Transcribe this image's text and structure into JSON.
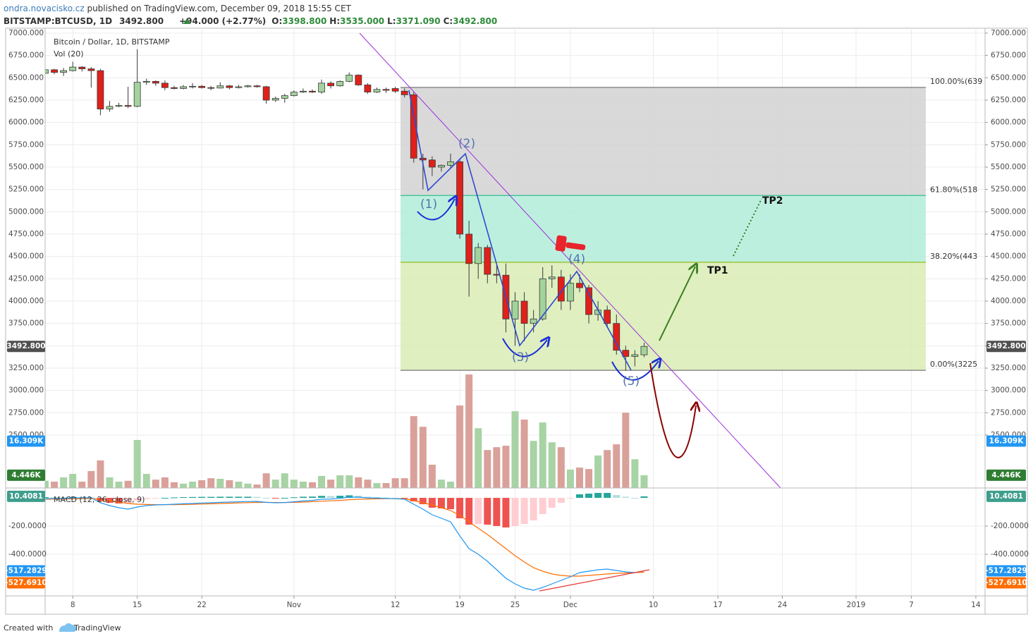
{
  "header": {
    "author": "ondra.novacisko.cz",
    "published": "published on TradingView.com, December 09, 2018 15:55 CET",
    "symbol": "BITSTAMP:BTCUSD, 1D",
    "price": "3492.800",
    "change": "+94.000 (+2.77%)",
    "ohlc": [
      {
        "key": "O:",
        "value": "3398.800"
      },
      {
        "key": "H:",
        "value": "3535.000"
      },
      {
        "key": "L:",
        "value": "3371.090"
      },
      {
        "key": "C:",
        "value": "3492.800"
      }
    ]
  },
  "chart_data": {
    "type": "candlestick",
    "title": "Bitcoin / Dollar, 1D, BITSTAMP",
    "x": [
      "2018-10-05",
      "2018-10-06",
      "2018-10-07",
      "2018-10-08",
      "2018-10-09",
      "2018-10-10",
      "2018-10-11",
      "2018-10-12",
      "2018-10-13",
      "2018-10-14",
      "2018-10-15",
      "2018-10-16",
      "2018-10-17",
      "2018-10-18",
      "2018-10-19",
      "2018-10-20",
      "2018-10-21",
      "2018-10-22",
      "2018-10-23",
      "2018-10-24",
      "2018-10-25",
      "2018-10-26",
      "2018-10-27",
      "2018-10-28",
      "2018-10-29",
      "2018-10-30",
      "2018-10-31",
      "2018-11-01",
      "2018-11-02",
      "2018-11-03",
      "2018-11-04",
      "2018-11-05",
      "2018-11-06",
      "2018-11-07",
      "2018-11-08",
      "2018-11-09",
      "2018-11-10",
      "2018-11-11",
      "2018-11-12",
      "2018-11-13",
      "2018-11-14",
      "2018-11-15",
      "2018-11-16",
      "2018-11-17",
      "2018-11-18",
      "2018-11-19",
      "2018-11-20",
      "2018-11-21",
      "2018-11-22",
      "2018-11-23",
      "2018-11-24",
      "2018-11-25",
      "2018-11-26",
      "2018-11-27",
      "2018-11-28",
      "2018-11-29",
      "2018-11-30",
      "2018-12-01",
      "2018-12-02",
      "2018-12-03",
      "2018-12-04",
      "2018-12-05",
      "2018-12-06",
      "2018-12-07",
      "2018-12-08",
      "2018-12-09"
    ],
    "open": [
      6550,
      6590,
      6560,
      6580,
      6620,
      6600,
      6580,
      6150,
      6180,
      6190,
      6180,
      6450,
      6460,
      6440,
      6390,
      6380,
      6400,
      6405,
      6390,
      6385,
      6410,
      6390,
      6400,
      6410,
      6400,
      6250,
      6270,
      6300,
      6340,
      6350,
      6340,
      6440,
      6410,
      6460,
      6530,
      6420,
      6340,
      6370,
      6380,
      6350,
      6310,
      5600,
      5580,
      5500,
      5520,
      5560,
      4750,
      4420,
      4600,
      4300,
      4290,
      3800,
      4000,
      3750,
      3800,
      4250,
      4270,
      4000,
      4200,
      4150,
      3850,
      3900,
      3750,
      3450,
      3380,
      3398.8
    ],
    "high": [
      6620,
      6600,
      6610,
      6680,
      6630,
      6620,
      6600,
      6240,
      6220,
      6400,
      6820,
      6490,
      6470,
      6470,
      6410,
      6420,
      6440,
      6420,
      6410,
      6450,
      6420,
      6420,
      6420,
      6420,
      6410,
      6290,
      6320,
      6360,
      6380,
      6370,
      6480,
      6460,
      6470,
      6560,
      6540,
      6440,
      6390,
      6390,
      6400,
      6380,
      6340,
      5650,
      5620,
      5530,
      5650,
      5600,
      4900,
      4650,
      4630,
      4400,
      4420,
      4100,
      4100,
      3900,
      4380,
      4400,
      4350,
      4300,
      4300,
      4180,
      4000,
      3950,
      3850,
      3500,
      3450,
      3535
    ],
    "low": [
      6530,
      6540,
      6520,
      6570,
      6570,
      6390,
      6080,
      6120,
      6170,
      6160,
      6170,
      6420,
      6410,
      6360,
      6370,
      6370,
      6380,
      6380,
      6360,
      6380,
      6370,
      6380,
      6390,
      6390,
      6210,
      6230,
      6220,
      6290,
      6330,
      6330,
      6320,
      6380,
      6400,
      6450,
      6410,
      6320,
      6330,
      6330,
      6330,
      6280,
      5550,
      5250,
      5400,
      5450,
      5490,
      4700,
      4050,
      4250,
      4200,
      4200,
      3650,
      3500,
      3550,
      3650,
      3780,
      4150,
      3900,
      3900,
      4100,
      3750,
      3780,
      3700,
      3400,
      3220,
      3270,
      3371.09
    ],
    "close": [
      6590,
      6560,
      6580,
      6620,
      6600,
      6580,
      6150,
      6180,
      6190,
      6180,
      6450,
      6460,
      6440,
      6390,
      6380,
      6400,
      6405,
      6390,
      6385,
      6410,
      6390,
      6400,
      6410,
      6400,
      6250,
      6270,
      6300,
      6340,
      6350,
      6340,
      6440,
      6410,
      6460,
      6530,
      6420,
      6340,
      6370,
      6360,
      6350,
      6310,
      5600,
      5580,
      5500,
      5520,
      5560,
      4750,
      4420,
      4600,
      4300,
      4290,
      3800,
      4000,
      3750,
      3800,
      4250,
      4270,
      4000,
      4200,
      4150,
      3850,
      3900,
      3750,
      3450,
      3380,
      3400,
      3492.8
    ],
    "up_color": "#a3d39c",
    "down_color": "#e0201a",
    "border_color": "#3a3a3a",
    "close_last_label": "3492.800",
    "last_color": "#4f4f4f",
    "xlim": [
      "2018-10-05",
      "2019-01-15"
    ],
    "xticks": [
      {
        "value": "2018-10-08",
        "label": "8"
      },
      {
        "value": "2018-10-15",
        "label": "15"
      },
      {
        "value": "2018-10-22",
        "label": "22"
      },
      {
        "value": "2018-11-01",
        "label": "Nov"
      },
      {
        "value": "2018-11-12",
        "label": "12"
      },
      {
        "value": "2018-11-19",
        "label": "19"
      },
      {
        "value": "2018-11-25",
        "label": "25"
      },
      {
        "value": "2018-12-01",
        "label": "Dec"
      },
      {
        "value": "2018-12-10",
        "label": "10"
      },
      {
        "value": "2018-12-17",
        "label": "17"
      },
      {
        "value": "2018-12-24",
        "label": "24"
      },
      {
        "value": "2019-01-01",
        "label": "2019"
      },
      {
        "value": "2019-01-07",
        "label": "7"
      },
      {
        "value": "2019-01-14",
        "label": "14"
      }
    ],
    "ylim": [
      1908,
      7055
    ],
    "yticks": [
      {
        "value": 2500,
        "label": "2500.000"
      },
      {
        "value": 2750,
        "label": "2750.000"
      },
      {
        "value": 3000,
        "label": "3000.000"
      },
      {
        "value": 3250,
        "label": "3250.000"
      },
      {
        "value": 3500,
        "label": "3500.000"
      },
      {
        "value": 3750,
        "label": "3750.000"
      },
      {
        "value": 4000,
        "label": "4000.000"
      },
      {
        "value": 4250,
        "label": "4250.000"
      },
      {
        "value": 4500,
        "label": "4500.000"
      },
      {
        "value": 4750,
        "label": "4750.000"
      },
      {
        "value": 5000,
        "label": "5000.000"
      },
      {
        "value": 5250,
        "label": "5250.000"
      },
      {
        "value": 5500,
        "label": "5500.000"
      },
      {
        "value": 5750,
        "label": "5750.000"
      },
      {
        "value": 6000,
        "label": "6000.000"
      },
      {
        "value": 6250,
        "label": "6250.000"
      },
      {
        "value": 6500,
        "label": "6500.000"
      },
      {
        "value": 6750,
        "label": "6750.000"
      },
      {
        "value": 7000,
        "label": "7000.000"
      }
    ],
    "grid": true,
    "fib": {
      "levels": [
        {
          "value": 6392,
          "label": "100.00%(639",
          "color": "#8c8c8c"
        },
        {
          "value": 5182,
          "label": "61.80%(518",
          "color": "#4cc39d"
        },
        {
          "value": 4435,
          "label": "38.20%(443",
          "color": "#9cc43c"
        },
        {
          "value": 3225,
          "label": "0.00%(3225",
          "color": "#8c8c8c"
        }
      ],
      "zone_colors": [
        "#d2d2d2",
        "#b2ecd9",
        "#d9ecb5"
      ]
    },
    "annotations": {
      "waves": [
        "(1)",
        "(2)",
        "(3)",
        "(4)",
        "(5)"
      ],
      "targets": [
        "TP1",
        "TP2"
      ]
    },
    "volume": {
      "title": "Vol (20)",
      "values": [
        2.5,
        2.2,
        3.7,
        4.9,
        2.2,
        5.9,
        9.6,
        3.7,
        2.2,
        2.5,
        16.7,
        4.9,
        2.9,
        3.7,
        2.0,
        1.5,
        2.2,
        2.7,
        3.4,
        3.2,
        2.7,
        2.2,
        1.5,
        1.2,
        5.1,
        2.9,
        5.1,
        2.9,
        2.2,
        2.0,
        4.2,
        2.9,
        4.4,
        4.4,
        3.7,
        2.9,
        1.7,
        1.7,
        3.4,
        3.4,
        25.0,
        21.3,
        8.1,
        2.9,
        2.2,
        28.7,
        39.5,
        20.8,
        13.2,
        14.2,
        14.7,
        26.7,
        23.8,
        16.4,
        22.8,
        15.9,
        14.2,
        6.4,
        7.1,
        6.6,
        11.3,
        13.2,
        15.2,
        26.2,
        10.0,
        4.446
      ],
      "ylim": [
        0,
        160
      ],
      "up_color": "#a7d3a5",
      "down_color": "#d9a19a",
      "last_label": "4.446K",
      "last_color": "#2e7d32",
      "ma_last": {
        "value": 16.309,
        "label": "16.309K",
        "color": "#2196f3"
      }
    },
    "macd": {
      "title": "MACD (12, 26, close, 9)",
      "values": [
        -5,
        -5,
        -5,
        0,
        0,
        0,
        -35,
        -55,
        -70,
        -80,
        -65,
        -55,
        -50,
        -48,
        -45,
        -42,
        -40,
        -37,
        -35,
        -32,
        -30,
        -28,
        -26,
        -25,
        -32,
        -35,
        -33,
        -28,
        -22,
        -18,
        -10,
        -8,
        -3,
        5,
        5,
        0,
        -2,
        -4,
        -6,
        -10,
        -45,
        -80,
        -120,
        -145,
        -170,
        -270,
        -360,
        -400,
        -450,
        -510,
        -570,
        -610,
        -640,
        -655,
        -635,
        -610,
        -585,
        -560,
        -530,
        -520,
        -510,
        -505,
        -515,
        -525,
        -530,
        -517.2829
      ],
      "signal": [
        -10,
        -9,
        -8,
        -7,
        -6,
        -5,
        -11,
        -20,
        -30,
        -40,
        -45,
        -47,
        -48,
        -48,
        -48,
        -47,
        -46,
        -44,
        -42,
        -40,
        -38,
        -36,
        -34,
        -32,
        -32,
        -33,
        -33,
        -32,
        -30,
        -27,
        -24,
        -21,
        -18,
        -13,
        -10,
        -8,
        -7,
        -6,
        -6,
        -7,
        -20,
        -35,
        -50,
        -70,
        -90,
        -125,
        -170,
        -215,
        -260,
        -310,
        -360,
        -410,
        -455,
        -495,
        -520,
        -540,
        -550,
        -555,
        -555,
        -550,
        -545,
        -540,
        -535,
        -533,
        -530,
        -527.691
      ],
      "histogram": [
        5,
        4,
        3,
        7,
        6,
        5,
        -24,
        -35,
        -40,
        -40,
        -20,
        -8,
        -2,
        0,
        3,
        5,
        6,
        7,
        7,
        8,
        8,
        8,
        8,
        7,
        0,
        -2,
        0,
        4,
        8,
        9,
        14,
        13,
        15,
        18,
        15,
        8,
        5,
        2,
        0,
        -3,
        -25,
        -45,
        -70,
        -75,
        -80,
        -145,
        -190,
        -185,
        -190,
        -200,
        -210,
        -200,
        -185,
        -160,
        -115,
        -70,
        -35,
        -5,
        25,
        30,
        35,
        35,
        20,
        8,
        0,
        10.4081
      ],
      "ylim": [
        -695,
        70
      ],
      "yticks": [
        {
          "value": -200,
          "label": "-200.0000"
        },
        {
          "value": -400,
          "label": "-400.0000"
        }
      ],
      "macd_color": "#2196f3",
      "signal_color": "#ff6d00",
      "histogram_colors": {
        "up_rising": "#26a69a",
        "up_falling": "#b2dfdb",
        "down_rising": "#ffcdd2",
        "down_falling": "#ef5350"
      },
      "last_labels": {
        "histogram": "10.4081",
        "macd": "-517.2829",
        "signal": "-527.6910"
      },
      "histogram_last_color": "#3e9e8c"
    }
  },
  "footer": {
    "created": "Created with",
    "brand": "TradingView"
  }
}
